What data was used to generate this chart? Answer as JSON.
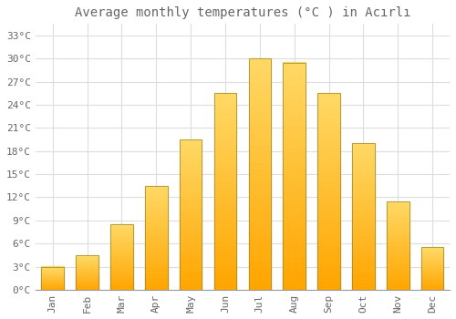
{
  "title": "Average monthly temperatures (°C ) in Acırlı",
  "months": [
    "Jan",
    "Feb",
    "Mar",
    "Apr",
    "May",
    "Jun",
    "Jul",
    "Aug",
    "Sep",
    "Oct",
    "Nov",
    "Dec"
  ],
  "values": [
    3.0,
    4.5,
    8.5,
    13.5,
    19.5,
    25.5,
    30.0,
    29.5,
    25.5,
    19.0,
    11.5,
    5.5
  ],
  "bar_color_bottom": "#FFA500",
  "bar_color_top": "#FFD966",
  "bar_edge_color": "#888844",
  "background_color": "#ffffff",
  "yticks": [
    0,
    3,
    6,
    9,
    12,
    15,
    18,
    21,
    24,
    27,
    30,
    33
  ],
  "ylim": [
    0,
    34.5
  ],
  "grid_color": "#dddddd",
  "text_color": "#666666",
  "title_fontsize": 10,
  "tick_fontsize": 8,
  "bar_width": 0.65,
  "gradient_steps": 40
}
